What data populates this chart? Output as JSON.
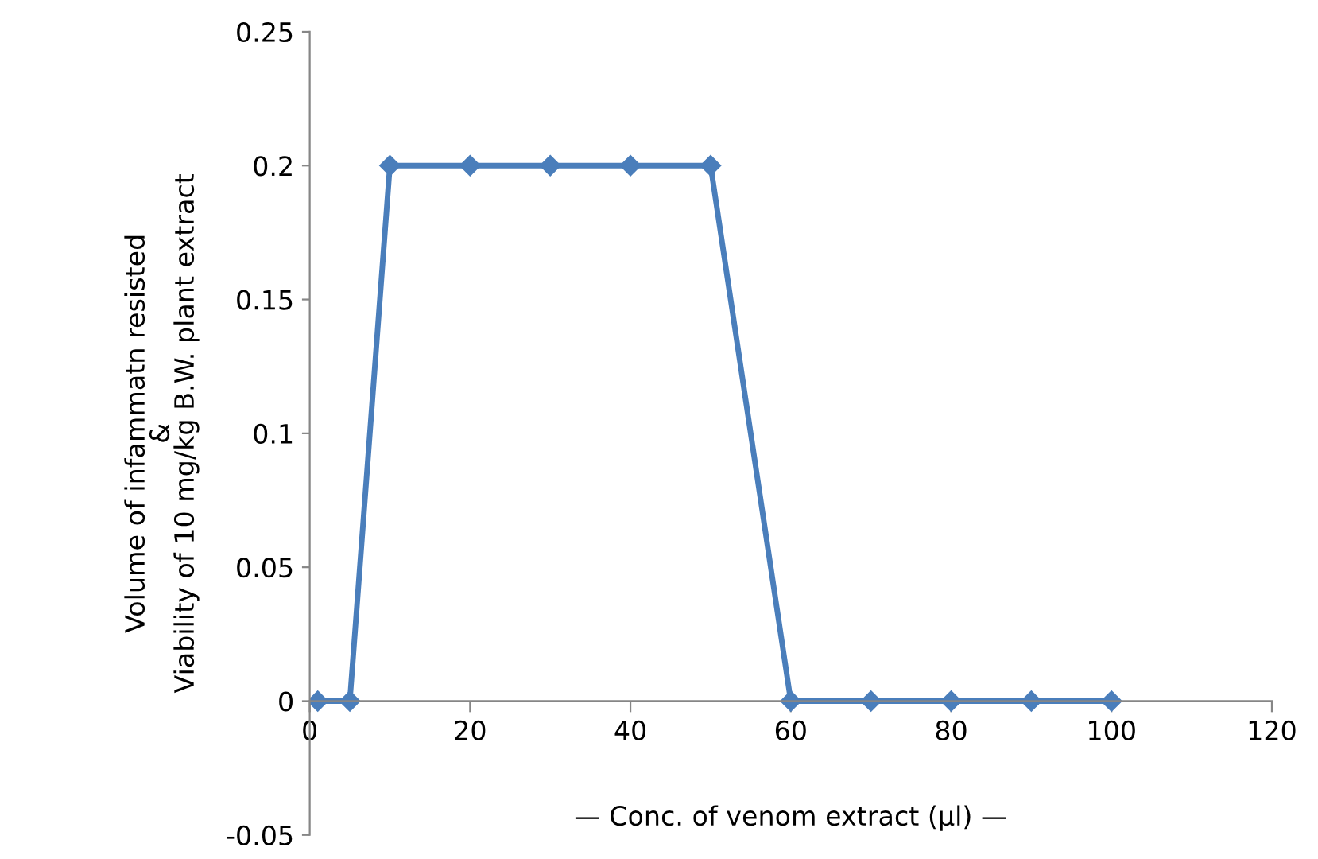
{
  "chart_data": {
    "type": "line",
    "xlabel": "— Conc. of venom extract (µl) —",
    "ylabel": "Volume of infammatn resisted\n&\nViability of 10 mg/kg B.W. plant extract",
    "x": [
      1,
      5,
      10,
      20,
      30,
      40,
      50,
      60,
      70,
      80,
      90,
      100
    ],
    "series": [
      {
        "color": "#4a7ebb",
        "values": [
          0,
          0,
          0.2,
          0.2,
          0.2,
          0.2,
          0.2,
          0,
          0,
          0,
          0,
          0
        ]
      }
    ],
    "xlim": [
      0,
      120
    ],
    "xticks": [
      0,
      20,
      40,
      60,
      80,
      100,
      120
    ],
    "ylim": [
      -0.05,
      0.25
    ],
    "yticks": [
      -0.05,
      0,
      0.05,
      0.1,
      0.15,
      0.2,
      0.25
    ],
    "marker": "diamond",
    "line_style": "solid",
    "grid": false,
    "legend": false
  }
}
